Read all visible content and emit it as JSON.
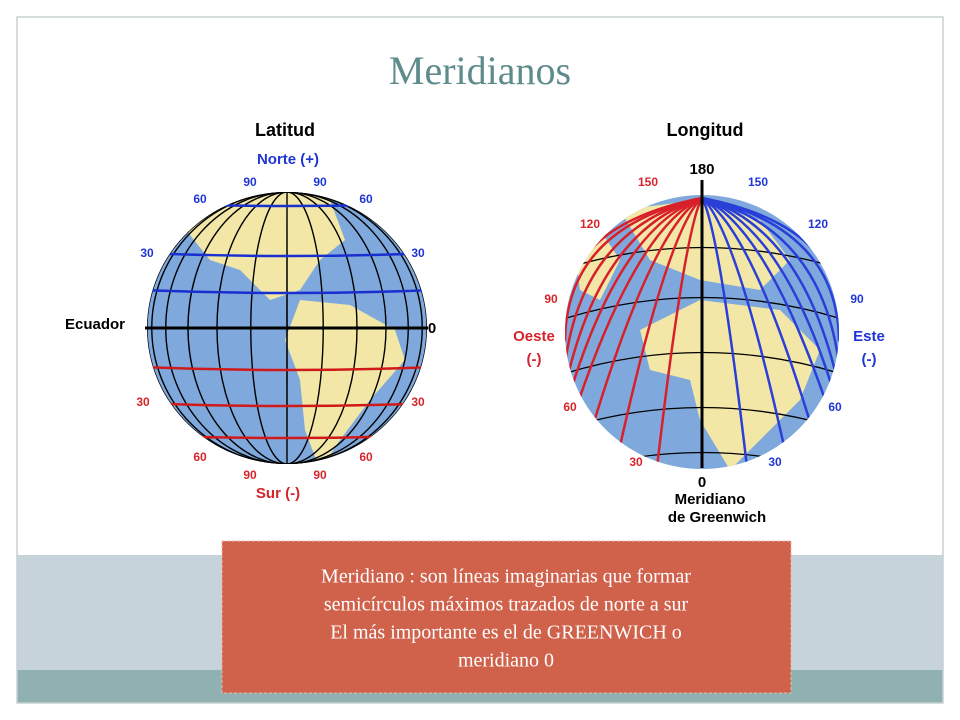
{
  "header": {
    "title": "Meridianos"
  },
  "left": {
    "title": "Latitud",
    "labels": [
      "Norte (+)",
      "90",
      "90",
      "60",
      "60",
      "30",
      "30",
      "Ecuador",
      "0",
      "30",
      "30",
      "60",
      "60",
      "90",
      "90",
      "Sur (-)"
    ]
  },
  "right": {
    "title": "Longitud",
    "labels": [
      "180",
      "150",
      "150",
      "120",
      "120",
      "90",
      "90",
      "Oeste",
      "(-)",
      "Este",
      "(-)",
      "60",
      "60",
      "30",
      "30",
      "0",
      "Meridiano",
      "de Greenwich"
    ]
  },
  "callout": {
    "lines": [
      "Meridiano : son líneas imaginarias que formar",
      "semicírculos máximos trazados de norte a sur",
      "El más importante es el de GREENWICH  o",
      "meridiano 0"
    ]
  }
}
